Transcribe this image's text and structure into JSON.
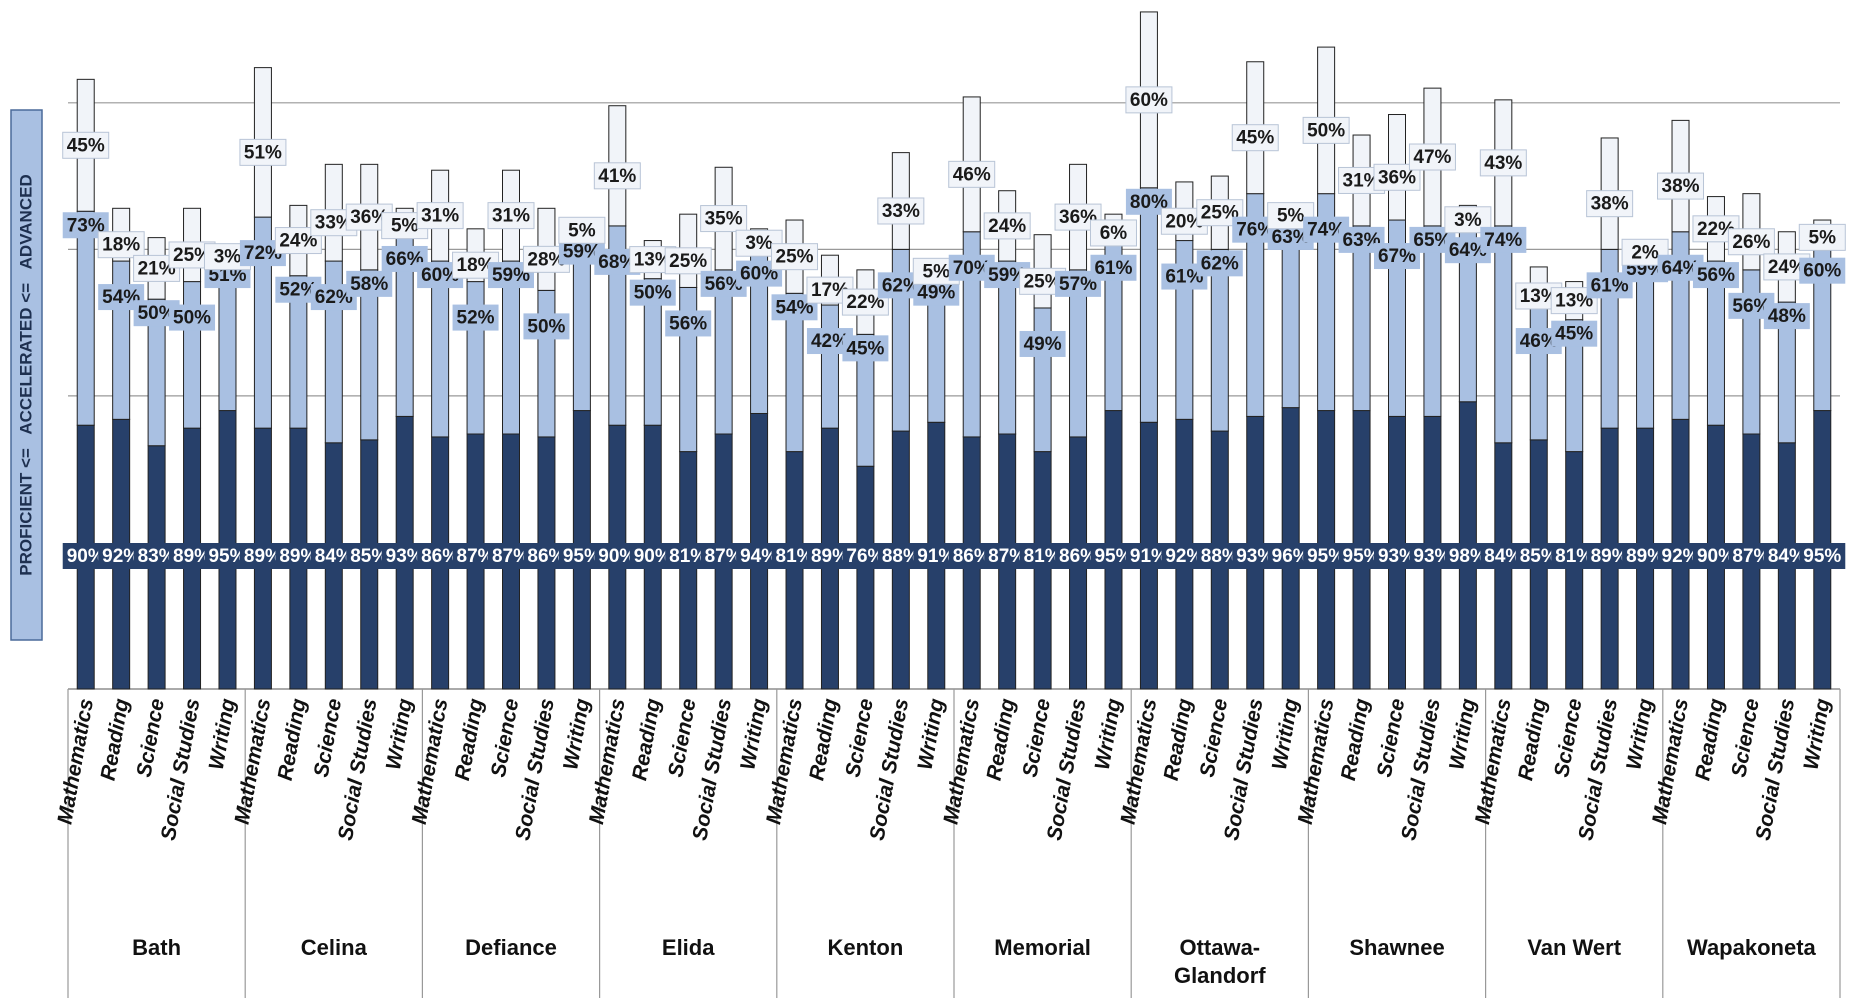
{
  "chart_data": {
    "type": "stacked-bar",
    "y_axis_label": "PROFICIENT <=   ACCELERATED <=   ADVANCED",
    "groups": [
      "Bath",
      "Celina",
      "Defiance",
      "Elida",
      "Kenton",
      "Memorial",
      "Ottawa-Glandorf",
      "Shawnee",
      "Van Wert",
      "Wapakoneta"
    ],
    "categories": [
      "Mathematics",
      "Reading",
      "Science",
      "Social Studies",
      "Writing",
      "Mathematics",
      "Reading",
      "Science",
      "Social Studies",
      "Writing",
      "Mathematics",
      "Reading",
      "Science",
      "Social Studies",
      "Writing",
      "Mathematics",
      "Reading",
      "Science",
      "Social Studies",
      "Writing",
      "Mathematics",
      "Reading",
      "Science",
      "Social Studies",
      "Writing",
      "Mathematics",
      "Reading",
      "Science",
      "Social Studies",
      "Writing",
      "Mathematics",
      "Reading",
      "Science",
      "Social Studies",
      "Writing",
      "Mathematics",
      "Reading",
      "Science",
      "Social Studies",
      "Writing",
      "Mathematics",
      "Reading",
      "Science",
      "Social Studies",
      "Writing",
      "Mathematics",
      "Reading",
      "Science",
      "Social Studies",
      "Writing"
    ],
    "series": [
      {
        "color": "#27406a",
        "values": [
          90,
          92,
          83,
          89,
          95,
          89,
          89,
          84,
          85,
          93,
          86,
          87,
          87,
          86,
          95,
          90,
          90,
          81,
          87,
          94,
          81,
          89,
          76,
          88,
          91,
          86,
          87,
          81,
          86,
          95,
          91,
          92,
          88,
          93,
          96,
          95,
          95,
          93,
          93,
          98,
          84,
          85,
          81,
          89,
          89,
          92,
          90,
          87,
          84,
          95
        ],
        "value_labels": [
          "90%",
          "92%",
          "83%",
          "89%",
          "95%",
          "89%",
          "89%",
          "84%",
          "85%",
          "93%",
          "86%",
          "87%",
          "87%",
          "86%",
          "95%",
          "90%",
          "90%",
          "81%",
          "87%",
          "94%",
          "81%",
          "89%",
          "76%",
          "88%",
          "91%",
          "86%",
          "87%",
          "81%",
          "86%",
          "95%",
          "91%",
          "92%",
          "88%",
          "93%",
          "96%",
          "95%",
          "95%",
          "93%",
          "93%",
          "98%",
          "84%",
          "85%",
          "81%",
          "89%",
          "89%",
          "92%",
          "90%",
          "87%",
          "84%",
          "95%"
        ]
      },
      {
        "color": "#a9c0e2",
        "values": [
          73,
          54,
          50,
          50,
          51,
          72,
          52,
          62,
          58,
          66,
          60,
          52,
          59,
          50,
          59,
          68,
          50,
          56,
          56,
          60,
          54,
          42,
          45,
          62,
          49,
          70,
          59,
          49,
          57,
          61,
          80,
          61,
          62,
          76,
          63,
          74,
          63,
          67,
          65,
          64,
          74,
          46,
          45,
          61,
          59,
          64,
          56,
          56,
          48,
          60
        ],
        "value_labels": [
          "73%",
          "54%",
          "50%",
          "50%",
          "51%",
          "72%",
          "52%",
          "62%",
          "58%",
          "66%",
          "60%",
          "52%",
          "59%",
          "50%",
          "59%",
          "68%",
          "50%",
          "56%",
          "56%",
          "60%",
          "54%",
          "42%",
          "45%",
          "62%",
          "49%",
          "70%",
          "59%",
          "49%",
          "57%",
          "61%",
          "80%",
          "61%",
          "62%",
          "76%",
          "63%",
          "74%",
          "63%",
          "67%",
          "65%",
          "64%",
          "74%",
          "46%",
          "45%",
          "61%",
          "59%",
          "64%",
          "56%",
          "56%",
          "48%",
          "60%"
        ]
      },
      {
        "color": "#f1f4f9",
        "values": [
          45,
          18,
          21,
          25,
          3,
          51,
          24,
          33,
          36,
          5,
          31,
          18,
          31,
          28,
          5,
          41,
          13,
          25,
          35,
          3,
          25,
          17,
          22,
          33,
          5,
          46,
          24,
          25,
          36,
          6,
          60,
          20,
          25,
          45,
          5,
          50,
          31,
          36,
          47,
          3,
          43,
          13,
          13,
          38,
          2,
          38,
          22,
          26,
          24,
          5
        ],
        "value_labels": [
          "45%",
          "18%",
          "21%",
          "25%",
          "3%",
          "51%",
          "24%",
          "33%",
          "36%",
          "5%",
          "31%",
          "18%",
          "31%",
          "28%",
          "5%",
          "41%",
          "13%",
          "25%",
          "35%",
          "3%",
          "25%",
          "17%",
          "22%",
          "33%",
          "5%",
          "46%",
          "24%",
          "25%",
          "36%",
          "6%",
          "60%",
          "20%",
          "25%",
          "45%",
          "5%",
          "50%",
          "31%",
          "36%",
          "47%",
          "3%",
          "43%",
          "13%",
          "13%",
          "38%",
          "2%",
          "38%",
          "22%",
          "26%",
          "24%",
          "5%"
        ]
      }
    ],
    "ylim": [
      0,
      232
    ],
    "yticks": [
      100,
      150,
      200
    ],
    "grid": true
  }
}
